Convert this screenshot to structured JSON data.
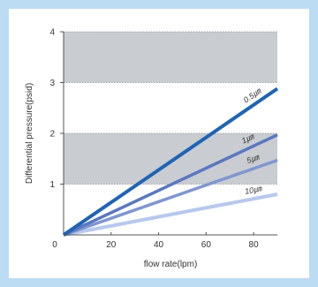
{
  "chart_data": {
    "type": "line",
    "title": "",
    "xlabel": "flow rate(lpm)",
    "ylabel": "Differential pressure(psid)",
    "xlim": [
      0,
      90
    ],
    "ylim": [
      0,
      4
    ],
    "x_ticks": [
      "0",
      "20",
      "40",
      "60",
      "80"
    ],
    "y_ticks": [
      "0",
      "1",
      "2",
      "3",
      "4"
    ],
    "background_bands": [
      [
        1,
        2
      ],
      [
        3,
        4
      ]
    ],
    "series": [
      {
        "name": "0.5㎛",
        "color": "#1f64b4",
        "x": [
          0,
          90
        ],
        "y": [
          0,
          2.88
        ]
      },
      {
        "name": "1㎛",
        "color": "#5a78c0",
        "x": [
          0,
          90
        ],
        "y": [
          0,
          1.97
        ]
      },
      {
        "name": "5㎛",
        "color": "#7f96cf",
        "x": [
          0,
          90
        ],
        "y": [
          0,
          1.47
        ]
      },
      {
        "name": "10㎛",
        "color": "#b6c8ec",
        "x": [
          0,
          90
        ],
        "y": [
          0,
          0.8
        ]
      }
    ]
  }
}
